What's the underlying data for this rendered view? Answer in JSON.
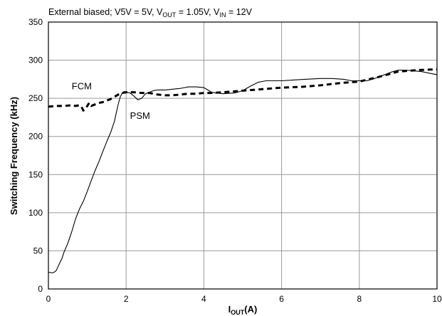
{
  "chart_data": {
    "type": "line",
    "title": {
      "prefix": "External biased; V5V = 5V, V",
      "sub1": "OUT",
      "mid": " = 1.05V, V",
      "sub2": "IN",
      "suffix": " = 12V"
    },
    "xlabel": {
      "main": "I",
      "sub": "OUT",
      "suffix": "(A)"
    },
    "ylabel": "Switching Frequency (kHz)",
    "xlim": [
      0,
      10
    ],
    "ylim": [
      0,
      350
    ],
    "xticks": [
      "0",
      "2",
      "4",
      "6",
      "8",
      "10"
    ],
    "yticks": [
      "0",
      "50",
      "100",
      "150",
      "200",
      "250",
      "300",
      "350"
    ],
    "grid": true,
    "annotations": [
      {
        "text": "FCM",
        "x": 0.6,
        "y": 262
      },
      {
        "text": "PSM",
        "x": 2.1,
        "y": 223
      }
    ],
    "series": [
      {
        "style": "solid",
        "x": [
          0.0,
          0.1,
          0.15,
          0.2,
          0.3,
          0.35,
          0.4,
          0.5,
          0.6,
          0.7,
          0.8,
          0.9,
          1.0,
          1.1,
          1.2,
          1.3,
          1.4,
          1.5,
          1.6,
          1.7,
          1.75,
          1.8,
          1.85,
          1.9,
          1.95,
          2.0,
          2.1,
          2.2,
          2.3,
          2.4,
          2.5,
          2.6,
          2.7,
          2.8,
          3.0,
          3.2,
          3.4,
          3.6,
          3.8,
          4.0,
          4.1,
          4.2,
          4.3,
          4.5,
          4.8,
          5.0,
          5.2,
          5.4,
          5.6,
          5.8,
          6.0,
          6.3,
          6.6,
          7.0,
          7.3,
          7.6,
          7.8,
          8.0,
          8.2,
          8.4,
          8.6,
          8.8,
          9.0,
          9.2,
          9.4,
          9.6,
          9.8,
          10.0
        ],
        "values": [
          22,
          21,
          22,
          24,
          35,
          40,
          48,
          60,
          75,
          92,
          105,
          115,
          128,
          142,
          155,
          167,
          180,
          193,
          205,
          220,
          232,
          243,
          252,
          257,
          259,
          258,
          257,
          253,
          248,
          250,
          256,
          258,
          260,
          261,
          261,
          262,
          263,
          265,
          265,
          264,
          261,
          258,
          257,
          256,
          257,
          260,
          266,
          271,
          273,
          273,
          273,
          274,
          275,
          276,
          276,
          275,
          273,
          273,
          273,
          276,
          280,
          284,
          287,
          287,
          286,
          285,
          283,
          281
        ]
      },
      {
        "style": "dashed",
        "x": [
          0.0,
          0.2,
          0.4,
          0.6,
          0.7,
          0.8,
          0.85,
          0.9,
          0.95,
          1.0,
          1.05,
          1.1,
          1.15,
          1.2,
          1.3,
          1.4,
          1.5,
          1.6,
          1.7,
          1.8,
          1.9,
          2.0,
          2.2,
          2.4,
          2.6,
          2.8,
          3.0,
          3.2,
          3.4,
          3.6,
          3.8,
          4.0,
          4.2,
          4.5,
          5.0,
          5.5,
          6.0,
          6.5,
          7.0,
          7.5,
          8.0,
          8.5,
          9.0,
          9.5,
          10.0
        ],
        "values": [
          239,
          240,
          240,
          241,
          240,
          241,
          239,
          234,
          236,
          240,
          244,
          240,
          241,
          242,
          244,
          245,
          247,
          249,
          252,
          255,
          257,
          258,
          258,
          257,
          257,
          255,
          254,
          254,
          255,
          256,
          256,
          257,
          257,
          258,
          260,
          262,
          264,
          265,
          267,
          270,
          272,
          278,
          285,
          287,
          288
        ]
      }
    ]
  }
}
